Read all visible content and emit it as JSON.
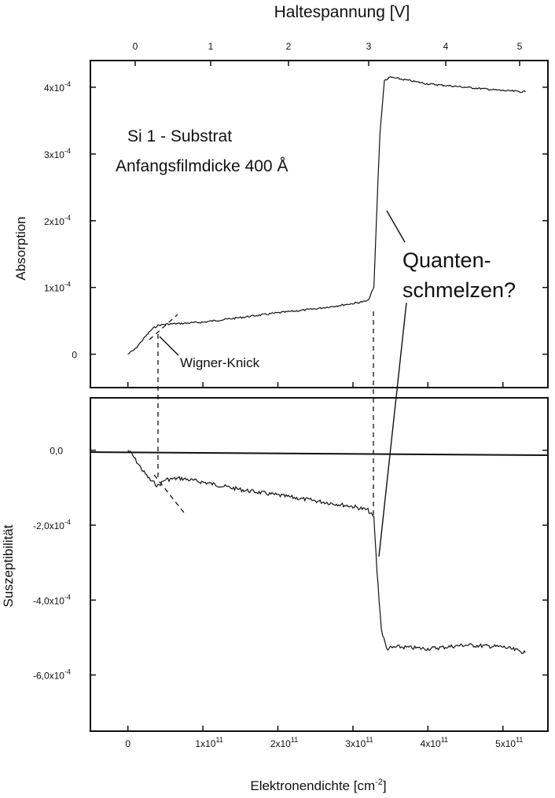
{
  "chart_data": [
    {
      "type": "line",
      "panel": "top",
      "title": "",
      "xlabel": "Elektronendichte [cm^-2]",
      "ylabel": "Absorption",
      "top_xlabel": "Haltespannung [V]",
      "top_xticks": [
        "0",
        "1",
        "2",
        "3",
        "4",
        "5"
      ],
      "top_xtick_values": [
        0,
        1,
        2,
        3,
        4,
        5
      ],
      "xlim": [
        -50000000000.0,
        560000000000.0
      ],
      "ylim": [
        -5e-05,
        0.00044
      ],
      "yticks": [
        {
          "value": 0,
          "label": "0"
        },
        {
          "value": 0.0001,
          "label": "1x10",
          "exp": "-4"
        },
        {
          "value": 0.0002,
          "label": "2x10",
          "exp": "-4"
        },
        {
          "value": 0.0003,
          "label": "3x10",
          "exp": "-4"
        },
        {
          "value": 0.0004,
          "label": "4x10",
          "exp": "-4"
        }
      ],
      "grid": false,
      "annotations": {
        "sample_line1": "Si 1 - Substrat",
        "sample_line2": "Anfangsfilmdicke 400 Å",
        "knee_label": "Wigner-Knick",
        "melting_line1": "Quanten-",
        "melting_line2": "schmelzen?"
      },
      "series": [
        {
          "x": [
            0.0,
            10000000000.0,
            20000000000.0,
            30000000000.0,
            35000000000.0,
            40000000000.0,
            50000000000.0,
            70000000000.0,
            100000000000.0,
            150000000000.0,
            200000000000.0,
            250000000000.0,
            300000000000.0,
            320000000000.0,
            328000000000.0,
            332000000000.0,
            336000000000.0,
            342000000000.0,
            350000000000.0,
            400000000000.0,
            450000000000.0,
            500000000000.0,
            530000000000.0
          ],
          "y": [
            0.0,
            8e-06,
            2.2e-05,
            3.5e-05,
            4e-05,
            4.3e-05,
            4.5e-05,
            4.6e-05,
            4.8e-05,
            5.5e-05,
            6.2e-05,
            6.8e-05,
            7.6e-05,
            8e-05,
            0.0001,
            0.00022,
            0.00033,
            0.00041,
            0.000415,
            0.000405,
            0.0004,
            0.000395,
            0.000393
          ]
        }
      ]
    },
    {
      "type": "line",
      "panel": "bottom",
      "title": "",
      "xlabel": "Elektronendichte [cm^-2]",
      "ylabel": "Suszeptibilität",
      "xlim": [
        -50000000000.0,
        560000000000.0
      ],
      "ylim": [
        -0.00075,
        0.00014
      ],
      "xticks": [
        {
          "value": 0,
          "label": "0"
        },
        {
          "value": 100000000000.0,
          "label": "1x10",
          "exp": "11"
        },
        {
          "value": 200000000000.0,
          "label": "2x10",
          "exp": "11"
        },
        {
          "value": 300000000000.0,
          "label": "3x10",
          "exp": "11"
        },
        {
          "value": 400000000000.0,
          "label": "4x10",
          "exp": "11"
        },
        {
          "value": 500000000000.0,
          "label": "5x10",
          "exp": "11"
        }
      ],
      "yticks": [
        {
          "value": 0,
          "label": "0,0"
        },
        {
          "value": -0.0002,
          "label": "-2,0x10",
          "exp": "-4"
        },
        {
          "value": -0.0004,
          "label": "-4,0x10",
          "exp": "-4"
        },
        {
          "value": -0.0006,
          "label": "-6,0x10",
          "exp": "-4"
        }
      ],
      "grid": false,
      "series": [
        {
          "x": [
            0.0,
            5000000000.0,
            10000000000.0,
            20000000000.0,
            30000000000.0,
            40000000000.0,
            50000000000.0,
            70000000000.0,
            100000000000.0,
            150000000000.0,
            200000000000.0,
            250000000000.0,
            300000000000.0,
            320000000000.0,
            328000000000.0,
            332000000000.0,
            338000000000.0,
            345000000000.0,
            360000000000.0,
            400000000000.0,
            450000000000.0,
            500000000000.0,
            530000000000.0
          ],
          "y": [
            0.0,
            -1e-05,
            -2.5e-05,
            -5.5e-05,
            -8e-05,
            -9.5e-05,
            -7.8e-05,
            -7.5e-05,
            -8.5e-05,
            -0.000105,
            -0.00012,
            -0.000135,
            -0.00015,
            -0.00016,
            -0.00018,
            -0.00032,
            -0.00048,
            -0.00053,
            -0.000525,
            -0.00053,
            -0.00052,
            -0.000525,
            -0.00054
          ]
        }
      ]
    }
  ]
}
